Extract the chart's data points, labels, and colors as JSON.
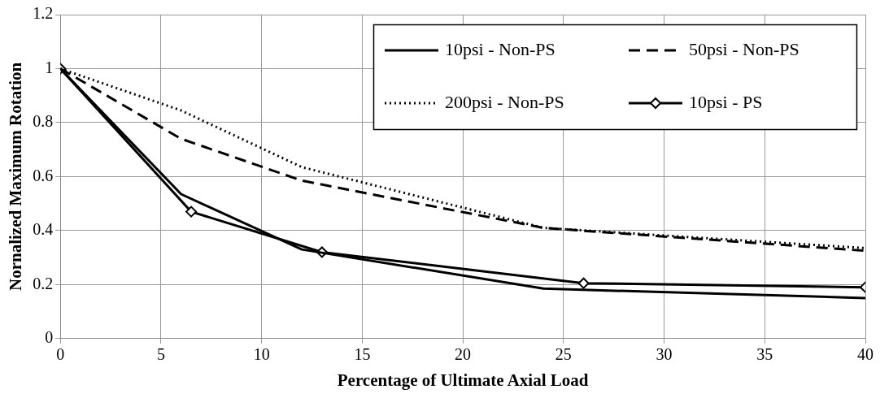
{
  "chart_data": {
    "type": "line",
    "xlabel": "Percentage of Ultimate Axial Load",
    "ylabel": "Nornalized Maximum Rotation",
    "xlim": [
      0,
      40
    ],
    "xticks": [
      0,
      5,
      10,
      15,
      20,
      25,
      30,
      35,
      40
    ],
    "ylim": [
      0,
      1.2
    ],
    "yticks": [
      0,
      0.2,
      0.4,
      0.6,
      0.8,
      1,
      1.2
    ],
    "grid": true,
    "legend": "top right",
    "marker": "none",
    "series": [
      {
        "name": "10psi - Non-PS",
        "color": "#000000",
        "line_style": "solid",
        "x": [
          0,
          6,
          12,
          24,
          40
        ],
        "values": [
          1,
          0.535,
          0.33,
          0.185,
          0.15
        ]
      },
      {
        "name": "50psi - Non-PS",
        "color": "#000000",
        "line_style": "dashed",
        "x": [
          0,
          6,
          12,
          24,
          40
        ],
        "values": [
          1,
          0.74,
          0.585,
          0.41,
          0.325
        ]
      },
      {
        "name": "200psi - Non-PS",
        "color": "#000000",
        "line_style": "dotted",
        "x": [
          0,
          6,
          12,
          24,
          40
        ],
        "values": [
          1,
          0.845,
          0.635,
          0.41,
          0.335
        ]
      },
      {
        "name": "10psi - PS",
        "color": "#000000",
        "line_style": "solid",
        "marker": "diamond",
        "x": [
          0,
          6.5,
          13,
          26,
          40
        ],
        "values": [
          1,
          0.47,
          0.32,
          0.205,
          0.19
        ]
      }
    ]
  }
}
